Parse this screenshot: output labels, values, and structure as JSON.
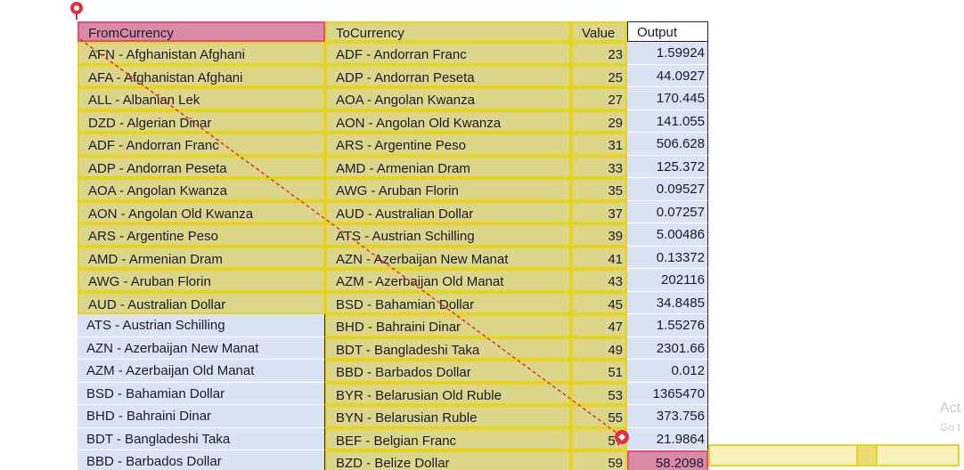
{
  "table": {
    "header": [
      "FromCurrency",
      "ToCurrency",
      "Value",
      "Output"
    ],
    "rows": [
      [
        "AFN - Afghanistan Afghani",
        "ADF - Andorran Franc",
        23,
        1.59924
      ],
      [
        "AFA - Afghanistan Afghani",
        "ADP - Andorran Peseta",
        25,
        44.0927
      ],
      [
        "ALL - Albanian Lek",
        "AOA - Angolan Kwanza",
        27,
        170.445
      ],
      [
        "DZD - Algerian Dinar",
        "AON - Angolan Old Kwanza",
        29,
        141.055
      ],
      [
        "ADF - Andorran Franc",
        "ARS - Argentine Peso",
        31,
        506.628
      ],
      [
        "ADP - Andorran Peseta",
        "AMD - Armenian Dram",
        33,
        125.372
      ],
      [
        "AOA - Angolan Kwanza",
        "AWG - Aruban Florin",
        35,
        0.09527
      ],
      [
        "AON - Angolan Old Kwanza",
        "AUD - Australian Dollar",
        37,
        0.07257
      ],
      [
        "ARS - Argentine Peso",
        "ATS - Austrian Schilling",
        39,
        5.00486
      ],
      [
        "AMD - Armenian Dram",
        "AZN - Azerbaijan New Manat",
        41,
        0.13372
      ],
      [
        "AWG - Aruban Florin",
        "AZM - Azerbaijan Old Manat",
        43,
        202116
      ],
      [
        "AUD - Australian Dollar",
        "BSD - Bahamian Dollar",
        45,
        34.8485
      ],
      [
        "ATS - Austrian Schilling",
        "BHD - Bahraini Dinar",
        47,
        1.55276
      ],
      [
        "AZN - Azerbaijan New Manat",
        "BDT - Bangladeshi Taka",
        49,
        2301.66
      ],
      [
        "AZM - Azerbaijan Old Manat",
        "BBD - Barbados Dollar",
        51,
        0.012
      ],
      [
        "BSD - Bahamian Dollar",
        "BYR - Belarusian Old Ruble",
        53,
        1365470
      ],
      [
        "BHD - Bahraini Dinar",
        "BYN - Belarusian Ruble",
        55,
        373.756
      ],
      [
        "BDT - Bangladeshi Taka",
        "BEF - Belgian Franc",
        57,
        21.9864
      ],
      [
        "BBD - Barbados Dollar",
        "BZD - Belize Dollar",
        59,
        58.2098
      ]
    ]
  },
  "watermark": {
    "line1": "Act",
    "line2": "Go t"
  }
}
